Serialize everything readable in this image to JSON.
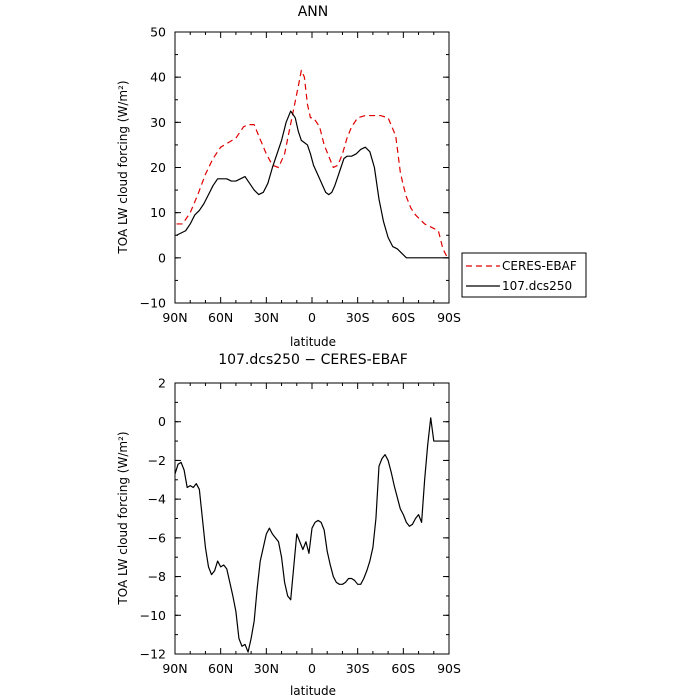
{
  "chart_data": [
    {
      "type": "line",
      "title": "ANN",
      "xlabel": "latitude",
      "ylabel": "TOA LW cloud forcing (W/m²)",
      "xlim": [
        90,
        -90
      ],
      "ylim": [
        -10,
        50
      ],
      "x_ticks": [
        90,
        60,
        30,
        0,
        -30,
        -60,
        -90
      ],
      "x_tick_labels": [
        "90N",
        "60N",
        "30N",
        "0",
        "30S",
        "60S",
        "90S"
      ],
      "y_ticks": [
        -10,
        0,
        10,
        20,
        30,
        40,
        50
      ],
      "y_tick_labels": [
        "−10",
        "0",
        "10",
        "20",
        "30",
        "40",
        "50"
      ],
      "legend_position": "right",
      "series": [
        {
          "name": "CERES-EBAF",
          "color": "#e00000",
          "dash": true,
          "x": [
            89,
            85,
            80,
            75,
            70,
            65,
            60,
            55,
            50,
            45,
            42,
            38,
            35,
            30,
            26,
            22,
            18,
            15,
            12,
            9,
            7,
            5,
            3,
            1,
            -1,
            -3,
            -5,
            -8,
            -11,
            -14,
            -17,
            -20,
            -23,
            -26,
            -30,
            -35,
            -40,
            -45,
            -50,
            -55,
            -58,
            -60,
            -62,
            -65,
            -68,
            -71,
            -74,
            -77,
            -80,
            -83,
            -86,
            -89
          ],
          "y": [
            7.5,
            7.5,
            10,
            14,
            18.5,
            22,
            24.5,
            25.5,
            26.5,
            29,
            29.5,
            29.5,
            27,
            23,
            20.5,
            20,
            23,
            28,
            33,
            38,
            41.5,
            40,
            34,
            31,
            31,
            30,
            29,
            25,
            22.5,
            20,
            20.5,
            23,
            26.5,
            29,
            31,
            31.5,
            31.5,
            31.5,
            31,
            27,
            19,
            16,
            13.5,
            11,
            9.5,
            8.5,
            7.5,
            7,
            6.5,
            6,
            2,
            0
          ]
        },
        {
          "name": "107.dcs250",
          "color": "#000000",
          "dash": false,
          "x": [
            89,
            86,
            83,
            80,
            77,
            74,
            71,
            68,
            65,
            62,
            59,
            56,
            53,
            50,
            47,
            44,
            41,
            38,
            35,
            32,
            29,
            26,
            23,
            20,
            17,
            14,
            11,
            9,
            7,
            5,
            3,
            1,
            -1,
            -3,
            -5,
            -7,
            -9,
            -11,
            -13,
            -15,
            -17,
            -19,
            -21,
            -23,
            -26,
            -29,
            -32,
            -35,
            -38,
            -41,
            -44,
            -47,
            -50,
            -53,
            -56,
            -59,
            -62,
            -65,
            -68,
            -71,
            -74,
            -77,
            -80,
            -83,
            -86,
            -89
          ],
          "y": [
            5,
            5.5,
            6,
            7.5,
            9.5,
            10.5,
            12,
            14,
            16,
            17.5,
            17.5,
            17.5,
            17,
            17,
            17.5,
            18,
            16.5,
            15,
            14,
            14.5,
            16.5,
            20,
            23,
            26,
            30,
            32.5,
            31,
            28,
            26,
            25.5,
            25,
            23,
            20.5,
            19,
            17.5,
            16,
            14.5,
            14,
            14.5,
            16,
            18,
            20,
            22,
            22.5,
            22.5,
            23,
            24,
            24.5,
            23.5,
            20,
            13,
            8,
            4.5,
            2.5,
            2,
            1,
            0,
            0,
            0,
            0,
            0,
            0,
            0,
            0,
            0,
            0
          ]
        }
      ]
    },
    {
      "type": "line",
      "title": "107.dcs250 − CERES-EBAF",
      "xlabel": "latitude",
      "ylabel": "TOA LW cloud forcing (W/m²)",
      "xlim": [
        90,
        -90
      ],
      "ylim": [
        -12,
        2
      ],
      "x_ticks": [
        90,
        60,
        30,
        0,
        -30,
        -60,
        -90
      ],
      "x_tick_labels": [
        "90N",
        "60N",
        "30N",
        "0",
        "30S",
        "60S",
        "90S"
      ],
      "y_ticks": [
        -12,
        -10,
        -8,
        -6,
        -4,
        -2,
        0,
        2
      ],
      "y_tick_labels": [
        "−12",
        "−10",
        "−8",
        "−6",
        "−4",
        "−2",
        "0",
        "2"
      ],
      "series": [
        {
          "color": "#000000",
          "dash": false,
          "x": [
            90,
            88,
            86,
            84,
            82,
            80,
            78,
            76,
            74,
            72,
            70,
            68,
            66,
            64,
            62,
            60,
            58,
            56,
            54,
            52,
            50,
            48,
            46,
            44,
            42,
            40,
            38,
            36,
            34,
            32,
            30,
            28,
            26,
            24,
            22,
            20,
            18,
            16,
            14,
            12,
            10,
            8,
            6,
            4,
            2,
            0,
            -2,
            -4,
            -6,
            -8,
            -10,
            -12,
            -14,
            -16,
            -18,
            -20,
            -22,
            -24,
            -26,
            -28,
            -30,
            -32,
            -34,
            -36,
            -38,
            -40,
            -42,
            -44,
            -46,
            -48,
            -50,
            -52,
            -54,
            -56,
            -58,
            -60,
            -62,
            -64,
            -66,
            -68,
            -70,
            -72,
            -74,
            -76,
            -78,
            -80,
            -82,
            -84,
            -86,
            -88,
            -90
          ],
          "y": [
            -2.7,
            -2.2,
            -2.1,
            -2.5,
            -3.4,
            -3.3,
            -3.4,
            -3.2,
            -3.5,
            -5,
            -6.5,
            -7.5,
            -7.9,
            -7.7,
            -7.2,
            -7.5,
            -7.4,
            -7.6,
            -8.3,
            -9,
            -9.8,
            -11.2,
            -11.6,
            -11.5,
            -11.9,
            -11.2,
            -10.3,
            -8.6,
            -7.2,
            -6.5,
            -5.8,
            -5.5,
            -5.8,
            -6,
            -6.2,
            -7,
            -8.3,
            -9,
            -9.2,
            -7.5,
            -5.8,
            -6.2,
            -6.6,
            -6.2,
            -6.8,
            -5.5,
            -5.2,
            -5.1,
            -5.2,
            -5.6,
            -6.7,
            -7.4,
            -8,
            -8.3,
            -8.4,
            -8.4,
            -8.3,
            -8.1,
            -8.1,
            -8.2,
            -8.4,
            -8.4,
            -8.1,
            -7.7,
            -7.2,
            -6.5,
            -5,
            -2.3,
            -1.9,
            -1.7,
            -2,
            -2.6,
            -3.3,
            -3.9,
            -4.5,
            -4.8,
            -5.2,
            -5.4,
            -5.3,
            -5,
            -4.8,
            -5.2,
            -3,
            -1.2,
            0.2,
            -1,
            -1,
            -1,
            -1,
            -1,
            -1
          ],
          "x_end": -90
        }
      ]
    }
  ]
}
